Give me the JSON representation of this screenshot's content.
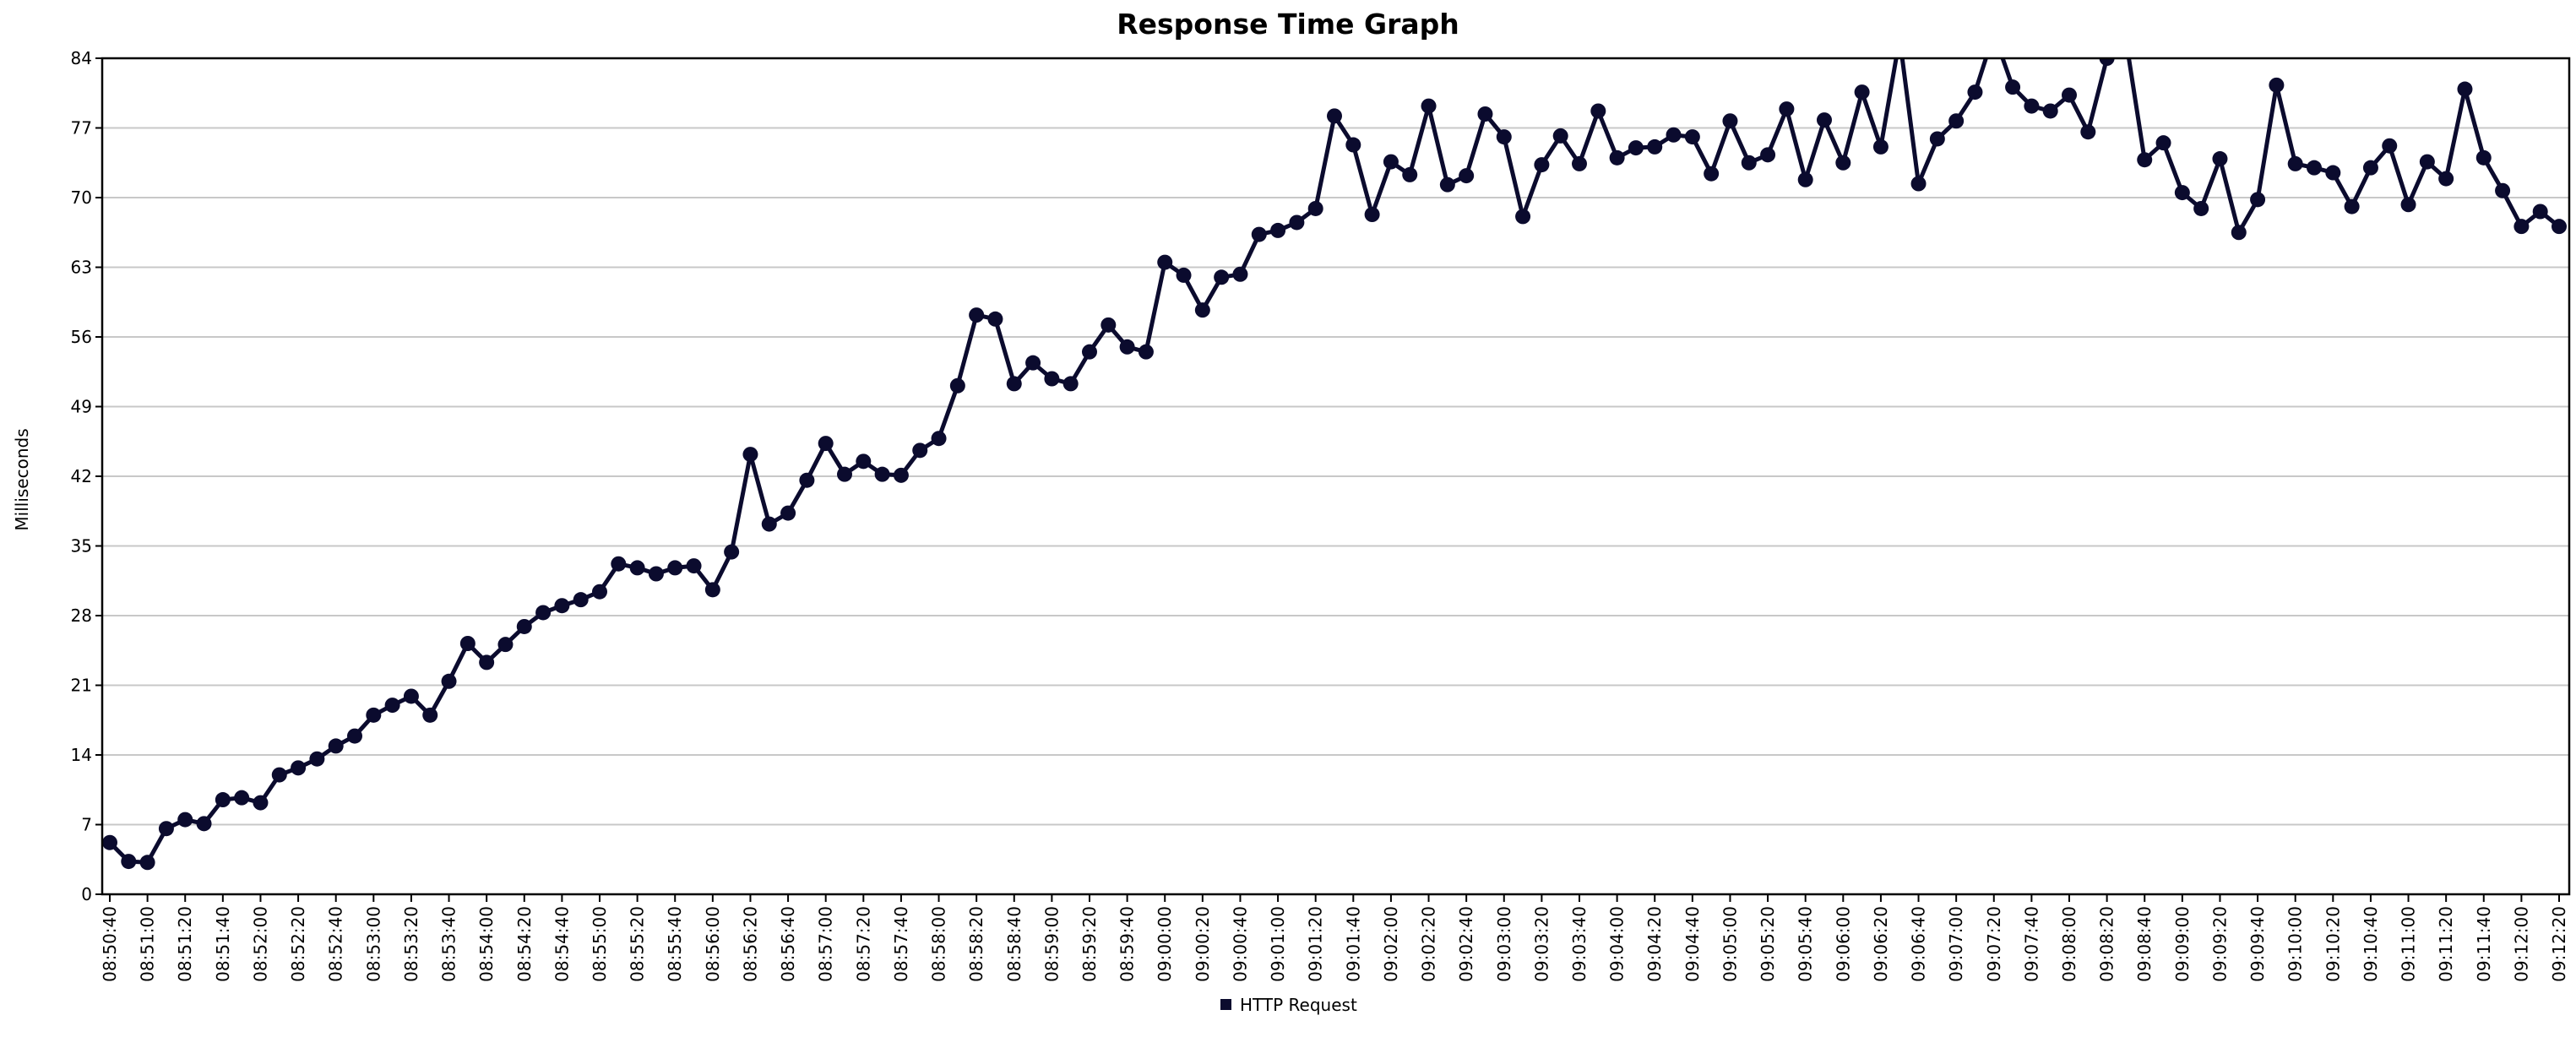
{
  "chart_data": {
    "type": "line",
    "title": "Response Time Graph",
    "xlabel": "",
    "ylabel": "Milliseconds",
    "ylim": [
      0,
      84
    ],
    "yticks": [
      0,
      7,
      14,
      21,
      28,
      35,
      42,
      49,
      56,
      63,
      70,
      77,
      84
    ],
    "grid": true,
    "legend_position": "bottom-center",
    "x_tick_labels": [
      "08:50:40",
      "08:51:00",
      "08:51:20",
      "08:51:40",
      "08:52:00",
      "08:52:20",
      "08:52:40",
      "08:53:00",
      "08:53:20",
      "08:53:40",
      "08:54:00",
      "08:54:20",
      "08:54:40",
      "08:55:00",
      "08:55:20",
      "08:55:40",
      "08:56:00",
      "08:56:20",
      "08:56:40",
      "08:57:00",
      "08:57:20",
      "08:57:40",
      "08:58:00",
      "08:58:20",
      "08:58:40",
      "08:59:00",
      "08:59:20",
      "08:59:40",
      "09:00:00",
      "09:00:20",
      "09:00:40",
      "09:01:00",
      "09:01:20",
      "09:01:40",
      "09:02:00",
      "09:02:20",
      "09:02:40",
      "09:03:00",
      "09:03:20",
      "09:03:40",
      "09:04:00",
      "09:04:20",
      "09:04:40",
      "09:05:00",
      "09:05:20",
      "09:05:40",
      "09:06:00",
      "09:06:20",
      "09:06:40",
      "09:07:00",
      "09:07:20",
      "09:07:40",
      "09:08:00",
      "09:08:20",
      "09:08:40",
      "09:09:00",
      "09:09:20",
      "09:09:40",
      "09:10:00",
      "09:10:20",
      "09:10:40",
      "09:11:00",
      "09:11:20",
      "09:11:40",
      "09:12:00",
      "09:12:20"
    ],
    "point_interval_seconds": 10,
    "series": [
      {
        "name": "HTTP Request",
        "color": "#0b0b2e",
        "values": [
          5.2,
          3.3,
          3.2,
          6.6,
          7.5,
          7.1,
          9.5,
          9.7,
          9.2,
          12.0,
          12.7,
          13.6,
          14.9,
          15.9,
          18.0,
          19.0,
          19.9,
          18.0,
          21.4,
          25.2,
          23.3,
          25.1,
          26.9,
          28.3,
          29.0,
          29.6,
          30.4,
          33.2,
          32.8,
          32.2,
          32.8,
          33.0,
          30.6,
          34.4,
          44.2,
          37.2,
          38.3,
          41.6,
          45.3,
          42.2,
          43.5,
          42.2,
          42.1,
          44.6,
          45.8,
          51.1,
          58.2,
          57.8,
          51.3,
          53.4,
          51.8,
          51.3,
          54.5,
          57.2,
          55.0,
          54.5,
          63.5,
          62.2,
          58.7,
          62.0,
          62.3,
          66.3,
          66.7,
          67.5,
          68.9,
          78.2,
          75.3,
          68.3,
          73.6,
          72.3,
          79.2,
          71.3,
          72.2,
          78.4,
          76.1,
          68.1,
          73.3,
          76.2,
          73.4,
          78.7,
          74.0,
          75.0,
          75.1,
          76.3,
          76.1,
          72.4,
          77.7,
          73.5,
          74.3,
          78.9,
          71.8,
          77.8,
          73.5,
          80.6,
          75.1,
          86.0,
          71.4,
          75.9,
          77.7,
          80.6,
          86.5,
          81.1,
          79.2,
          78.7,
          80.3,
          76.6,
          84.0,
          86.0,
          73.8,
          75.5,
          70.5,
          68.9,
          73.9,
          66.5,
          69.8,
          81.3,
          73.4,
          73.0,
          72.5,
          69.1,
          73.0,
          75.2,
          69.3,
          73.6,
          71.9,
          80.9,
          74.0,
          70.7,
          67.1,
          68.6,
          67.1
        ]
      }
    ]
  }
}
